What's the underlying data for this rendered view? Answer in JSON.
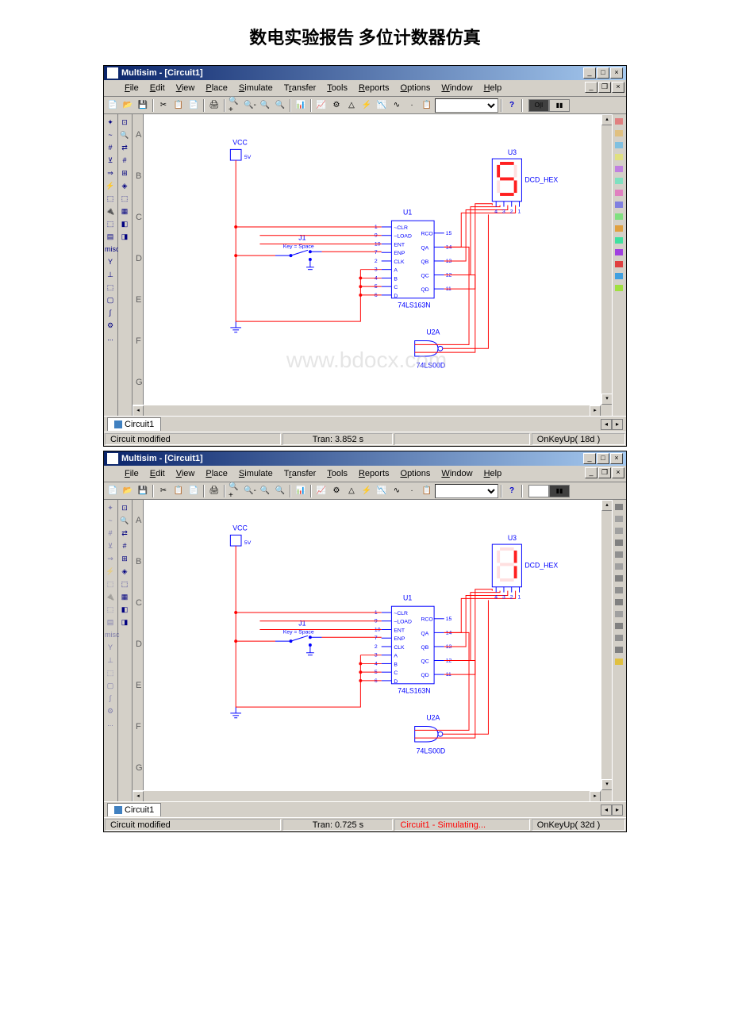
{
  "page_title": "数电实验报告 多位计数器仿真",
  "app_title": "Multisim - [Circuit1]",
  "menu": {
    "file": "File",
    "edit": "Edit",
    "view": "View",
    "place": "Place",
    "simulate": "Simulate",
    "transfer": "Transfer",
    "tools": "Tools",
    "reports": "Reports",
    "options": "Options",
    "window": "Window",
    "help": "Help"
  },
  "toolbar_icons": [
    "📄",
    "📂",
    "💾",
    "|",
    "✂",
    "📋",
    "📄",
    "|",
    "🖨",
    "|",
    "🔍+",
    "🔍-",
    "🔍",
    "🔍",
    "|",
    "📊",
    "|",
    "📈",
    "⚙",
    "△",
    "⚡",
    "📉",
    "∿",
    "·",
    "📋"
  ],
  "vtool_left1": [
    "✦",
    "~",
    "#",
    "⊻",
    "⇒",
    "⚡",
    "⬚",
    "🔌",
    "⬚",
    "▤",
    "misc",
    "Y",
    "⊥",
    "⬚",
    "▢",
    "∫",
    "⚙",
    "..."
  ],
  "vtool_left2": [
    "⊡",
    "🔍",
    "⇄",
    "#",
    "⊞",
    "◈",
    "⬚",
    "▦",
    "◧",
    "◨"
  ],
  "ruler_marks": [
    "A",
    "B",
    "C",
    "D",
    "E",
    "F",
    "G"
  ],
  "rtool_colors1": [
    "#e08080",
    "#e0c080",
    "#80c0e0",
    "#e0e080",
    "#c080e0",
    "#80e0c0",
    "#e080c0",
    "#8080e0",
    "#80e080",
    "#e0a040",
    "#40e0a0",
    "#a040e0",
    "#e04040",
    "#40a0e0",
    "#a0e040"
  ],
  "rtool_colors2": [
    "#808080",
    "#a0a0a0",
    "#a0a0a0",
    "#808080",
    "#909090",
    "#a0a0a0",
    "#808080",
    "#909090",
    "#808080",
    "#a0a0a0",
    "#808080",
    "#909090",
    "#808080",
    "#e0c040"
  ],
  "circuit": {
    "vcc_label": "VCC",
    "vcc_val": "5V",
    "switch": {
      "ref": "J1",
      "key": "Key = Space"
    },
    "ic": {
      "ref": "U1",
      "part": "74LS163N",
      "pins_left": [
        "~CLR",
        "~LOAD",
        "ENT",
        "ENP",
        "CLK",
        "A",
        "B",
        "C",
        "D"
      ],
      "pins_left_num": [
        "1",
        "9",
        "10",
        "7",
        "2",
        "3",
        "4",
        "5",
        "6"
      ],
      "pins_right": [
        "RCO",
        "QA",
        "QB",
        "QC",
        "QD"
      ],
      "pins_right_num": [
        "15",
        "14",
        "13",
        "12",
        "11"
      ]
    },
    "gate": {
      "ref": "U2A",
      "part": "74LS00D"
    },
    "display": {
      "ref": "U3",
      "type": "DCD_HEX",
      "pins": [
        "4",
        "3",
        "2",
        "1"
      ]
    }
  },
  "tab": "Circuit1",
  "status1": {
    "left": "Circuit modified",
    "mid": "Tran: 3.852 s",
    "sim": "",
    "right": "OnKeyUp( 18d )"
  },
  "status2": {
    "left": "Circuit modified",
    "mid": "Tran: 0.725 s",
    "sim": "Circuit1 - Simulating...",
    "right": "OnKeyUp( 32d )"
  },
  "watermark": "www.bdocx.com",
  "display1_segments": [
    1,
    0,
    1,
    1,
    0,
    1,
    1
  ],
  "display2_segments": [
    0,
    1,
    1,
    0,
    0,
    0,
    0
  ],
  "colors": {
    "titlebar_start": "#0a246a",
    "titlebar_end": "#a6caf0",
    "bg": "#d4d0c8",
    "wire": "#ff0000",
    "comp": "#0000ff",
    "sim_text": "#ff0000"
  }
}
